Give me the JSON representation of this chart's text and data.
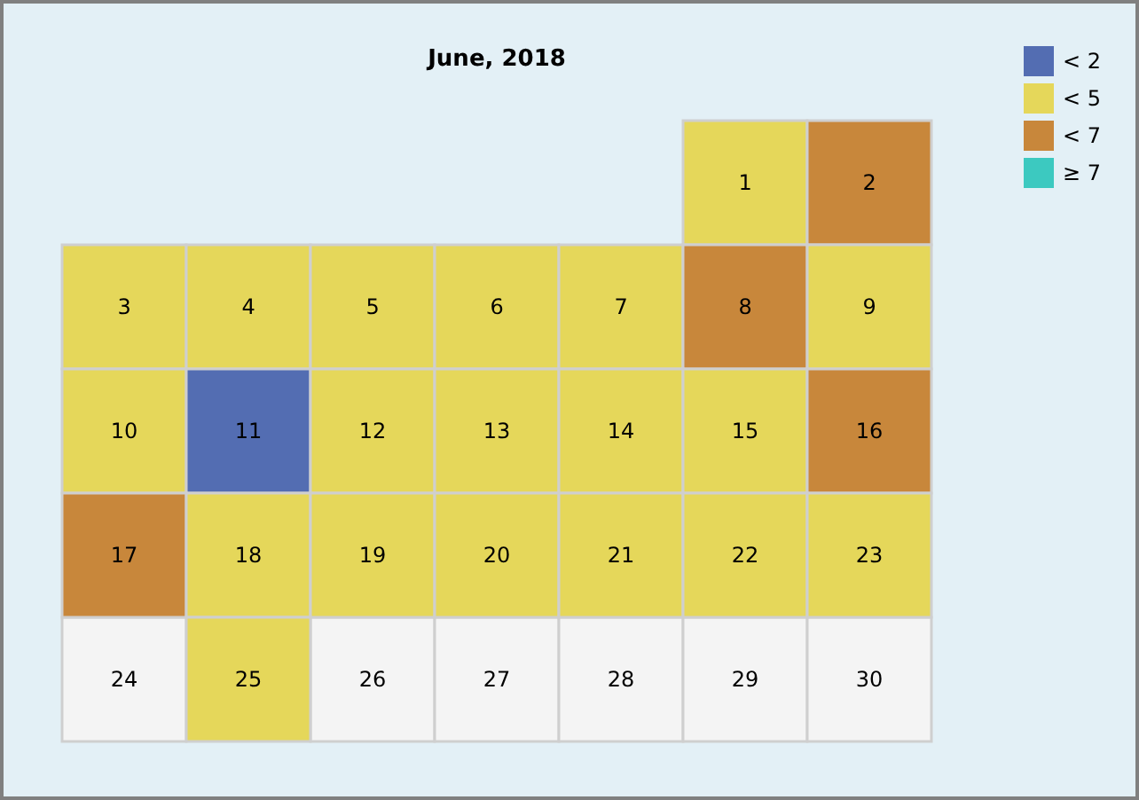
{
  "chart_data": {
    "type": "heatmap",
    "title": "June, 2018",
    "categories": [
      null,
      null,
      null,
      null,
      null,
      null,
      null
    ],
    "y_categories": [
      null,
      null,
      null,
      null,
      null
    ],
    "cells": [
      [
        null,
        null,
        null,
        null,
        null,
        1,
        2
      ],
      [
        3,
        4,
        5,
        6,
        7,
        8,
        9
      ],
      [
        10,
        11,
        12,
        13,
        14,
        15,
        16
      ],
      [
        17,
        18,
        19,
        20,
        21,
        22,
        23
      ],
      [
        24,
        25,
        26,
        27,
        28,
        29,
        30
      ]
    ],
    "colors": [
      [
        null,
        null,
        null,
        null,
        null,
        "#e5d75a",
        "#c8873b"
      ],
      [
        "#e5d75a",
        "#e5d75a",
        "#e5d75a",
        "#e5d75a",
        "#e5d75a",
        "#c8873b",
        "#e5d75a"
      ],
      [
        "#e5d75a",
        "#536db2",
        "#e5d75a",
        "#e5d75a",
        "#e5d75a",
        "#e5d75a",
        "#c8873b"
      ],
      [
        "#c8873b",
        "#e5d75a",
        "#e5d75a",
        "#e5d75a",
        "#e5d75a",
        "#e5d75a",
        "#e5d75a"
      ],
      [
        null,
        "#e5d75a",
        null,
        null,
        null,
        null,
        null
      ]
    ],
    "series": [
      {
        "name": "< 2",
        "color": "#536db2",
        "values": [
          null,
          null,
          null,
          null,
          null,
          null,
          null
        ]
      },
      {
        "name": "< 5",
        "color": "#e5d75a",
        "values": [
          null,
          null,
          null,
          null,
          null,
          null,
          null
        ]
      },
      {
        "name": "< 7",
        "color": "#c8873b",
        "values": [
          null,
          null,
          null,
          null,
          null,
          null,
          null
        ]
      },
      {
        "name": "≥ 7",
        "color": "#3cc9c0",
        "values": [
          null,
          null,
          null,
          null,
          null,
          null,
          null
        ]
      }
    ],
    "data_labels": true,
    "legend": "top right"
  }
}
